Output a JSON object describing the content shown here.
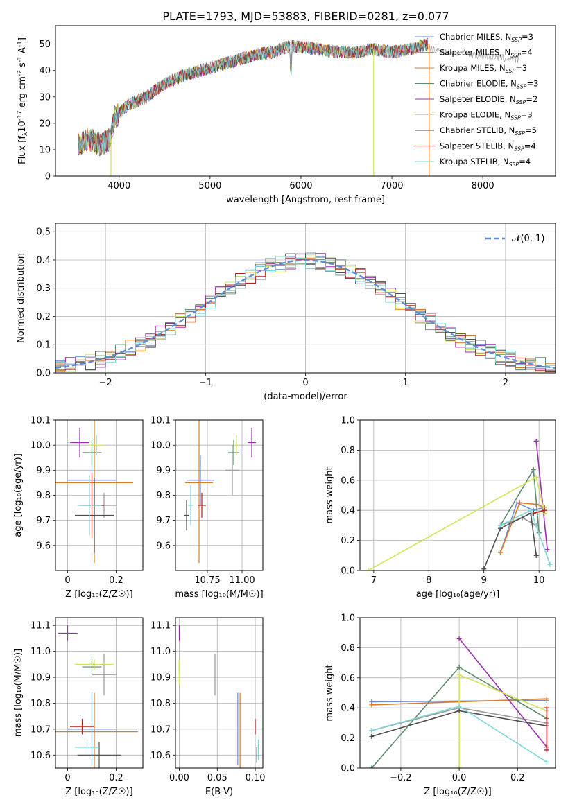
{
  "title": "PLATE=1793, MJD=53883, FIBERID=0281, z=0.077",
  "series": [
    {
      "name": "Chabrier MILES",
      "ssp": "3",
      "color": "#6a8fd6"
    },
    {
      "name": "Salpeter MILES",
      "ssp": "4",
      "color": "#999999"
    },
    {
      "name": "Kroupa MILES",
      "ssp": "3",
      "color": "#e07b25"
    },
    {
      "name": "Chabrier ELODIE",
      "ssp": "3",
      "color": "#5b8a6a"
    },
    {
      "name": "Salpeter ELODIE",
      "ssp": "2",
      "color": "#9a2fae"
    },
    {
      "name": "Kroupa ELODIE",
      "ssp": "3",
      "color": "#d2e55a"
    },
    {
      "name": "Chabrier STELIB",
      "ssp": "5",
      "color": "#4d4d4d"
    },
    {
      "name": "Salpeter STELIB",
      "ssp": "4",
      "color": "#b51f1f"
    },
    {
      "name": "Kroupa STELIB",
      "ssp": "4",
      "color": "#7fd6d9"
    }
  ],
  "chart_data": [
    {
      "id": "spectrum",
      "type": "line",
      "xlabel": "wavelength [Angstrom, rest frame]",
      "ylabel": "Flux [f_λ10^-17 erg cm^-2 s^-1 A^-1]",
      "xlim": [
        3300,
        8800
      ],
      "ylim": [
        0,
        57
      ],
      "xticks": [
        4000,
        5000,
        6000,
        7000,
        8000
      ],
      "yticks": [
        0,
        10,
        20,
        30,
        40,
        50
      ],
      "continuum": [
        [
          3550,
          12
        ],
        [
          3650,
          14
        ],
        [
          3800,
          12
        ],
        [
          3900,
          14
        ],
        [
          3950,
          22
        ],
        [
          4100,
          27
        ],
        [
          4300,
          30
        ],
        [
          4500,
          35
        ],
        [
          4700,
          38
        ],
        [
          4900,
          40
        ],
        [
          5100,
          42
        ],
        [
          5300,
          44
        ],
        [
          5500,
          46
        ],
        [
          5700,
          47
        ],
        [
          5850,
          49
        ],
        [
          6000,
          49
        ],
        [
          6200,
          48
        ],
        [
          6400,
          47
        ],
        [
          6600,
          47
        ],
        [
          6800,
          48
        ],
        [
          7000,
          47
        ],
        [
          7200,
          48
        ],
        [
          7400,
          50
        ]
      ],
      "grey_extension": [
        [
          7400,
          50
        ],
        [
          7600,
          49
        ],
        [
          7800,
          48
        ],
        [
          8000,
          47
        ],
        [
          8200,
          46
        ],
        [
          8400,
          44
        ]
      ]
    },
    {
      "id": "residuals",
      "type": "line",
      "xlabel": "(data-model)/error",
      "ylabel": "Normed distribution",
      "xlim": [
        -2.5,
        2.5
      ],
      "ylim": [
        0,
        0.53
      ],
      "xticks": [
        -2,
        -1,
        0,
        1,
        2
      ],
      "xtick_labels": [
        "−2",
        "−1",
        "0",
        "1",
        "2"
      ],
      "yticks": [
        0.0,
        0.1,
        0.2,
        0.3,
        0.4,
        0.5
      ],
      "reference": "𝒩(0, 1)",
      "bin_width": 0.1,
      "hist_base": [
        0.02,
        0.025,
        0.03,
        0.035,
        0.04,
        0.045,
        0.05,
        0.055,
        0.065,
        0.075,
        0.09,
        0.1,
        0.12,
        0.135,
        0.155,
        0.17,
        0.19,
        0.21,
        0.225,
        0.245,
        0.27,
        0.29,
        0.31,
        0.33,
        0.35,
        0.37,
        0.38,
        0.39,
        0.4,
        0.41,
        0.42,
        0.41,
        0.4,
        0.395,
        0.385,
        0.375,
        0.365,
        0.35,
        0.33,
        0.315,
        0.3,
        0.28,
        0.26,
        0.24,
        0.22,
        0.2,
        0.18,
        0.16,
        0.14,
        0.12,
        0.105,
        0.09,
        0.08,
        0.07,
        0.06,
        0.05,
        0.045,
        0.04,
        0.035,
        0.03,
        0.025,
        0.02,
        0.02,
        0.02,
        0.02,
        0.02,
        0.02,
        0.02,
        0.02,
        0.02,
        0.02,
        0.02,
        0.02,
        0.02,
        0.02,
        0.02,
        0.02,
        0.02,
        0.02,
        0.02,
        0.02,
        0.02,
        0.02,
        0.02,
        0.02,
        0.02,
        0.02,
        0.02,
        0.02,
        0.02,
        0.02,
        0.02,
        0.02,
        0.02,
        0.02,
        0.02,
        0.02,
        0.02,
        0.02,
        0.02
      ]
    },
    {
      "id": "age-vs-Z",
      "type": "scatter",
      "xlabel": "Z [log10(Z/Z☉)]",
      "ylabel": "age [log10(age/yr)]",
      "xlim": [
        -0.05,
        0.31
      ],
      "ylim": [
        9.5,
        10.1
      ],
      "xticks": [
        0.0,
        0.2
      ],
      "yticks": [
        9.6,
        9.7,
        9.8,
        9.9,
        10.0,
        10.1
      ],
      "points": [
        {
          "s": 0,
          "x": 0.1,
          "y": 9.86,
          "xerr": 0.1,
          "yerr": 0.1
        },
        {
          "s": 1,
          "x": 0.15,
          "y": 9.76,
          "xerr": 0.05,
          "yerr": 0.05
        },
        {
          "s": 2,
          "x": 0.11,
          "y": 9.85,
          "xerr": 0.16,
          "yerr": 0.32
        },
        {
          "s": 3,
          "x": 0.1,
          "y": 9.97,
          "xerr": 0.04,
          "yerr": 0.05
        },
        {
          "s": 4,
          "x": 0.05,
          "y": 10.01,
          "xerr": 0.04,
          "yerr": 0.06
        },
        {
          "s": 5,
          "x": 0.12,
          "y": 10.0,
          "xerr": 0.03,
          "yerr": 0.04
        },
        {
          "s": 6,
          "x": 0.11,
          "y": 9.72,
          "xerr": 0.08,
          "yerr": 0.15
        },
        {
          "s": 7,
          "x": 0.1,
          "y": 9.76,
          "xerr": 0.05,
          "yerr": 0.13
        },
        {
          "s": 8,
          "x": 0.09,
          "y": 9.76,
          "xerr": 0.05,
          "yerr": 0.12
        }
      ]
    },
    {
      "id": "age-vs-mass",
      "type": "scatter",
      "xlabel": "mass [log10(M/M☉)]",
      "ylabel": "",
      "xlim": [
        10.52,
        11.15
      ],
      "ylim": [
        9.5,
        10.1
      ],
      "xticks": [
        10.75,
        11.0
      ],
      "xtick_labels": [
        "10.75",
        "11.00"
      ],
      "yticks": [
        9.6,
        9.7,
        9.8,
        9.9,
        10.0,
        10.1
      ],
      "points": [
        {
          "s": 0,
          "x": 10.7,
          "y": 9.86,
          "xerr": 0.1,
          "yerr": 0.1
        },
        {
          "s": 1,
          "x": 10.93,
          "y": 9.9,
          "xerr": 0.05,
          "yerr": 0.1
        },
        {
          "s": 2,
          "x": 10.69,
          "y": 9.85,
          "xerr": 0.1,
          "yerr": 0.32
        },
        {
          "s": 3,
          "x": 10.94,
          "y": 9.97,
          "xerr": 0.04,
          "yerr": 0.05
        },
        {
          "s": 4,
          "x": 11.07,
          "y": 10.01,
          "xerr": 0.03,
          "yerr": 0.06
        },
        {
          "s": 5,
          "x": 10.96,
          "y": 10.0,
          "xerr": 0.02,
          "yerr": 0.04
        },
        {
          "s": 6,
          "x": 10.6,
          "y": 9.72,
          "xerr": 0.02,
          "yerr": 0.06
        },
        {
          "s": 7,
          "x": 10.71,
          "y": 9.76,
          "xerr": 0.03,
          "yerr": 0.05
        },
        {
          "s": 8,
          "x": 10.63,
          "y": 9.76,
          "xerr": 0.02,
          "yerr": 0.08
        }
      ]
    },
    {
      "id": "weight-vs-age",
      "type": "line",
      "xlabel": "age [log10(age/yr)]",
      "ylabel": "mass weight",
      "xlim": [
        6.75,
        10.3
      ],
      "ylim": [
        0,
        1.0
      ],
      "xticks": [
        7,
        8,
        9,
        10
      ],
      "yticks": [
        0.0,
        0.2,
        0.4,
        0.6,
        0.8,
        1.0
      ],
      "lines": [
        {
          "s": 0,
          "pts": [
            [
              9.3,
              0.12
            ],
            [
              9.6,
              0.45
            ],
            [
              9.9,
              0.4
            ],
            [
              10.1,
              0.42
            ]
          ]
        },
        {
          "s": 1,
          "pts": [
            [
              9.3,
              0.3
            ],
            [
              9.7,
              0.35
            ],
            [
              9.95,
              0.3
            ]
          ]
        },
        {
          "s": 2,
          "pts": [
            [
              9.3,
              0.12
            ],
            [
              9.65,
              0.45
            ],
            [
              9.95,
              0.44
            ],
            [
              10.1,
              0.42
            ]
          ]
        },
        {
          "s": 3,
          "pts": [
            [
              9.3,
              0.3
            ],
            [
              9.9,
              0.67
            ],
            [
              10.0,
              0.25
            ]
          ]
        },
        {
          "s": 4,
          "pts": [
            [
              9.95,
              0.86
            ],
            [
              10.15,
              0.14
            ]
          ]
        },
        {
          "s": 5,
          "pts": [
            [
              6.9,
              0.0
            ],
            [
              9.95,
              0.62
            ],
            [
              10.1,
              0.38
            ]
          ]
        },
        {
          "s": 6,
          "pts": [
            [
              9.0,
              0.01
            ],
            [
              9.3,
              0.28
            ],
            [
              9.85,
              0.38
            ],
            [
              9.95,
              0.1
            ]
          ]
        },
        {
          "s": 7,
          "pts": [
            [
              9.9,
              0.38
            ],
            [
              10.1,
              0.4
            ]
          ]
        },
        {
          "s": 8,
          "pts": [
            [
              9.3,
              0.3
            ],
            [
              9.85,
              0.4
            ],
            [
              10.2,
              0.04
            ]
          ]
        }
      ]
    },
    {
      "id": "mass-vs-Z",
      "type": "scatter",
      "xlabel": "Z [log10(Z/Z☉)]",
      "ylabel": "mass [log10(M/M☉)]",
      "xlim": [
        -0.05,
        0.31
      ],
      "ylim": [
        10.55,
        11.13
      ],
      "xticks": [
        0.0,
        0.2
      ],
      "yticks": [
        10.6,
        10.7,
        10.8,
        10.9,
        11.0,
        11.1
      ],
      "points": [
        {
          "s": 0,
          "x": 0.1,
          "y": 10.7,
          "xerr": 0.1,
          "yerr": 0.14
        },
        {
          "s": 1,
          "x": 0.15,
          "y": 10.91,
          "xerr": 0.05,
          "yerr": 0.08
        },
        {
          "s": 2,
          "x": 0.11,
          "y": 10.69,
          "xerr": 0.18,
          "yerr": 0.15
        },
        {
          "s": 3,
          "x": 0.1,
          "y": 10.94,
          "xerr": 0.04,
          "yerr": 0.03
        },
        {
          "s": 4,
          "x": 0.0,
          "y": 11.07,
          "xerr": 0.04,
          "yerr": 0.03
        },
        {
          "s": 5,
          "x": 0.11,
          "y": 10.95,
          "xerr": 0.08,
          "yerr": 0.02
        },
        {
          "s": 6,
          "x": 0.13,
          "y": 10.6,
          "xerr": 0.09,
          "yerr": 0.05
        },
        {
          "s": 7,
          "x": 0.06,
          "y": 10.71,
          "xerr": 0.05,
          "yerr": 0.03
        },
        {
          "s": 8,
          "x": 0.08,
          "y": 10.63,
          "xerr": 0.05,
          "yerr": 0.03
        }
      ]
    },
    {
      "id": "mass-vs-ebv",
      "type": "scatter",
      "xlabel": "E(B-V)",
      "ylabel": "",
      "xlim": [
        -0.005,
        0.11
      ],
      "ylim": [
        10.55,
        11.13
      ],
      "xticks": [
        0.0,
        0.05,
        0.1
      ],
      "xtick_labels": [
        "0.00",
        "0.05",
        "0.10"
      ],
      "yticks": [
        10.6,
        10.7,
        10.8,
        10.9,
        11.0,
        11.1
      ],
      "points": [
        {
          "s": 0,
          "x": 0.077,
          "y": 10.7,
          "xerr": 0,
          "yerr": 0.14
        },
        {
          "s": 1,
          "x": 0.047,
          "y": 10.91,
          "xerr": 0,
          "yerr": 0.08
        },
        {
          "s": 2,
          "x": 0.08,
          "y": 10.69,
          "xerr": 0,
          "yerr": 0.15
        },
        {
          "s": 3,
          "x": 0.0,
          "y": 10.94,
          "xerr": 0,
          "yerr": 0.03
        },
        {
          "s": 4,
          "x": 0.0,
          "y": 11.07,
          "xerr": 0,
          "yerr": 0.03
        },
        {
          "s": 5,
          "x": 0.0,
          "y": 10.92,
          "xerr": 0,
          "yerr": 0.05
        },
        {
          "s": 6,
          "x": 0.102,
          "y": 10.6,
          "xerr": 0,
          "yerr": 0.03
        },
        {
          "s": 7,
          "x": 0.1,
          "y": 10.71,
          "xerr": 0,
          "yerr": 0.03
        },
        {
          "s": 8,
          "x": 0.104,
          "y": 10.62,
          "xerr": 0,
          "yerr": 0.04
        }
      ]
    },
    {
      "id": "weight-vs-Z",
      "type": "line",
      "xlabel": "Z [log10(Z/Z☉)]",
      "ylabel": "mass weight",
      "xlim": [
        -0.34,
        0.33
      ],
      "ylim": [
        0,
        1.0
      ],
      "xticks": [
        -0.2,
        0.0,
        0.2
      ],
      "xtick_labels": [
        "−0.2",
        "0.0",
        "0.2"
      ],
      "yticks": [
        0.0,
        0.2,
        0.4,
        0.6,
        0.8,
        1.0
      ],
      "lines": [
        {
          "s": 0,
          "pts": [
            [
              -0.3,
              0.44
            ],
            [
              0.3,
              0.45
            ]
          ]
        },
        {
          "s": 1,
          "pts": [
            [
              -0.3,
              0.25
            ],
            [
              0.0,
              0.4
            ],
            [
              0.3,
              0.3
            ]
          ]
        },
        {
          "s": 2,
          "pts": [
            [
              -0.3,
              0.42
            ],
            [
              0.3,
              0.46
            ]
          ]
        },
        {
          "s": 3,
          "pts": [
            [
              -0.3,
              0.0
            ],
            [
              0.0,
              0.67
            ],
            [
              0.3,
              0.33
            ]
          ]
        },
        {
          "s": 4,
          "pts": [
            [
              0.0,
              0.86
            ],
            [
              0.3,
              0.14
            ]
          ]
        },
        {
          "s": 5,
          "pts": [
            [
              0.0,
              0.0
            ],
            [
              0.0,
              0.62
            ],
            [
              0.3,
              0.38
            ]
          ]
        },
        {
          "s": 6,
          "pts": [
            [
              -0.3,
              0.21
            ],
            [
              0.0,
              0.38
            ],
            [
              0.3,
              0.28
            ]
          ]
        },
        {
          "s": 7,
          "pts": [
            [
              0.3,
              0.4
            ],
            [
              0.3,
              0.12
            ]
          ]
        },
        {
          "s": 8,
          "pts": [
            [
              -0.3,
              0.25
            ],
            [
              0.0,
              0.41
            ],
            [
              0.3,
              0.04
            ]
          ]
        }
      ]
    }
  ]
}
